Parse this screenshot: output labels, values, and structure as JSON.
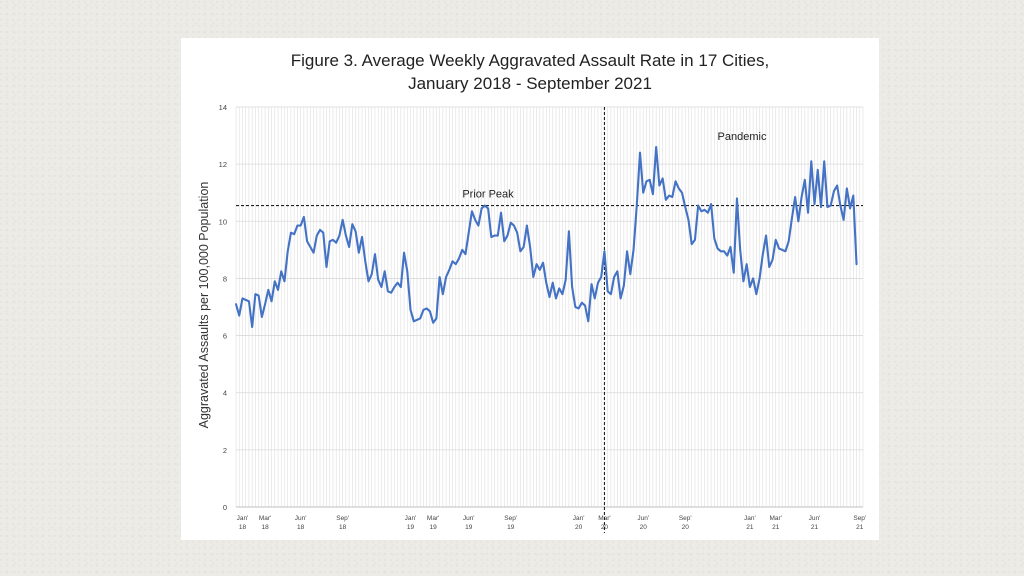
{
  "chart_data": {
    "type": "line",
    "title": "Figure 3. Average Weekly Aggravated Assault Rate in 17 Cities,",
    "subtitle": "January 2018 - September 2021",
    "xlabel": "",
    "ylabel": "Aggravated Assaults per 100,000 Population",
    "ylim": [
      0,
      14
    ],
    "yticks": [
      0,
      2,
      4,
      6,
      8,
      10,
      12,
      14
    ],
    "grid": true,
    "x_range_weeks": [
      0,
      194
    ],
    "x_ticks": [
      {
        "week": 2,
        "line1": "Jan'",
        "line2": "18"
      },
      {
        "week": 9,
        "line1": "Mar'",
        "line2": "18"
      },
      {
        "week": 20,
        "line1": "Jun'",
        "line2": "18"
      },
      {
        "week": 33,
        "line1": "Sep'",
        "line2": "18"
      },
      {
        "week": 54,
        "line1": "Jan'",
        "line2": "19"
      },
      {
        "week": 61,
        "line1": "Mar'",
        "line2": "19"
      },
      {
        "week": 72,
        "line1": "Jun'",
        "line2": "19"
      },
      {
        "week": 85,
        "line1": "Sep'",
        "line2": "19"
      },
      {
        "week": 106,
        "line1": "Jan'",
        "line2": "20"
      },
      {
        "week": 114,
        "line1": "Mar'",
        "line2": "20"
      },
      {
        "week": 126,
        "line1": "Jun'",
        "line2": "20"
      },
      {
        "week": 139,
        "line1": "Sep'",
        "line2": "20"
      },
      {
        "week": 159,
        "line1": "Jan'",
        "line2": "21"
      },
      {
        "week": 167,
        "line1": "Mar'",
        "line2": "21"
      },
      {
        "week": 179,
        "line1": "Jun'",
        "line2": "21"
      },
      {
        "week": 193,
        "line1": "Sep'",
        "line2": "21"
      }
    ],
    "reference_lines": [
      {
        "orientation": "horizontal",
        "value": 10.55,
        "label": "Prior Peak"
      },
      {
        "orientation": "vertical",
        "week": 114,
        "label": "Pandemic"
      }
    ],
    "series": [
      {
        "name": "Average weekly aggravated assault rate",
        "color": "#4472c4",
        "values": [
          7.1,
          6.7,
          7.3,
          7.25,
          7.2,
          6.3,
          7.45,
          7.4,
          6.65,
          7.1,
          7.6,
          7.2,
          7.9,
          7.6,
          8.25,
          7.9,
          8.95,
          9.6,
          9.55,
          9.85,
          9.85,
          10.15,
          9.3,
          9.1,
          8.9,
          9.5,
          9.7,
          9.6,
          8.4,
          9.3,
          9.35,
          9.25,
          9.5,
          10.05,
          9.5,
          9.1,
          9.9,
          9.65,
          8.9,
          9.45,
          8.6,
          7.9,
          8.15,
          8.85,
          7.95,
          7.7,
          8.25,
          7.55,
          7.5,
          7.7,
          7.85,
          7.7,
          8.9,
          8.25,
          6.9,
          6.5,
          6.55,
          6.6,
          6.9,
          6.95,
          6.85,
          6.45,
          6.6,
          8.05,
          7.45,
          8.05,
          8.3,
          8.6,
          8.5,
          8.7,
          9.0,
          8.85,
          9.6,
          10.35,
          10.05,
          9.85,
          10.45,
          10.55,
          10.45,
          9.45,
          9.5,
          9.5,
          10.3,
          9.3,
          9.5,
          9.95,
          9.85,
          9.6,
          8.95,
          9.1,
          9.85,
          9.1,
          8.05,
          8.5,
          8.3,
          8.55,
          7.85,
          7.35,
          7.85,
          7.3,
          7.65,
          7.45,
          7.95,
          9.65,
          7.7,
          7.0,
          6.95,
          7.15,
          7.05,
          6.5,
          7.8,
          7.3,
          7.85,
          8.05,
          8.95,
          7.55,
          7.45,
          8.05,
          8.25,
          7.3,
          7.75,
          8.95,
          8.15,
          9.0,
          10.55,
          12.4,
          11.0,
          11.4,
          11.45,
          10.95,
          12.6,
          11.25,
          11.5,
          10.75,
          10.9,
          10.85,
          11.4,
          11.15,
          11.0,
          10.5,
          10.05,
          9.2,
          9.35,
          10.55,
          10.35,
          10.4,
          10.3,
          10.6,
          9.4,
          9.05,
          8.95,
          8.95,
          8.8,
          9.1,
          8.2,
          10.8,
          9.0,
          7.9,
          8.5,
          7.7,
          8.0,
          7.45,
          8.0,
          8.85,
          9.5,
          8.4,
          8.65,
          9.35,
          9.05,
          9.0,
          8.95,
          9.3,
          10.1,
          10.85,
          10.0,
          10.85,
          11.45,
          10.3,
          12.1,
          10.6,
          11.8,
          10.5,
          12.1,
          10.5,
          10.55,
          11.05,
          11.25,
          10.55,
          10.05,
          11.15,
          10.45,
          10.9,
          8.5
        ]
      }
    ]
  }
}
